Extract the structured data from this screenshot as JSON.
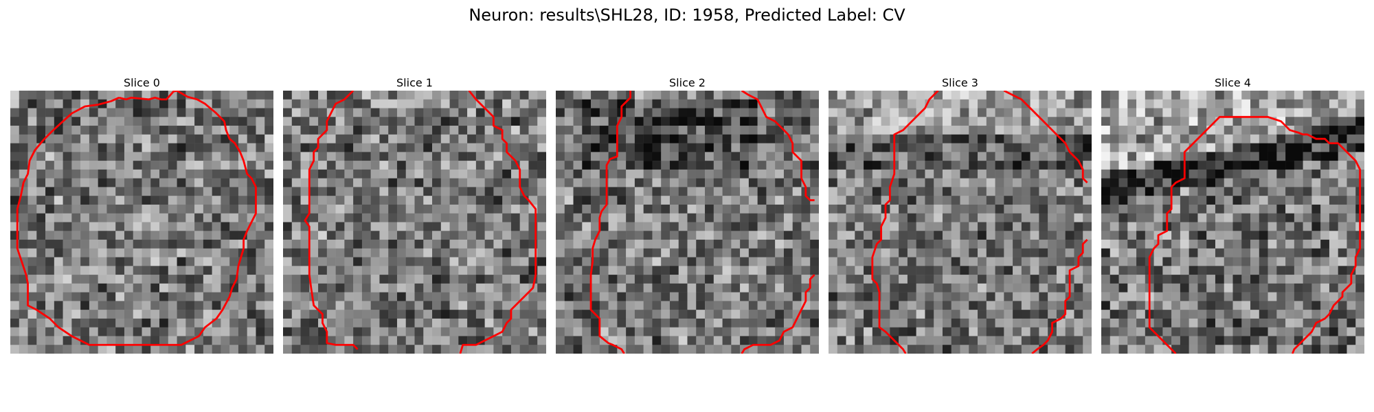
{
  "figure": {
    "title": "Neuron: results\\SHL28, ID: 1958, Predicted Label: CV"
  },
  "panels": [
    {
      "title": "Slice 0",
      "contour_color": "#ff0000"
    },
    {
      "title": "Slice 1",
      "contour_color": "#ff0000"
    },
    {
      "title": "Slice 2",
      "contour_color": "#ff0000"
    },
    {
      "title": "Slice 3",
      "contour_color": "#ff0000"
    },
    {
      "title": "Slice 4",
      "contour_color": "#ff0000"
    }
  ]
}
